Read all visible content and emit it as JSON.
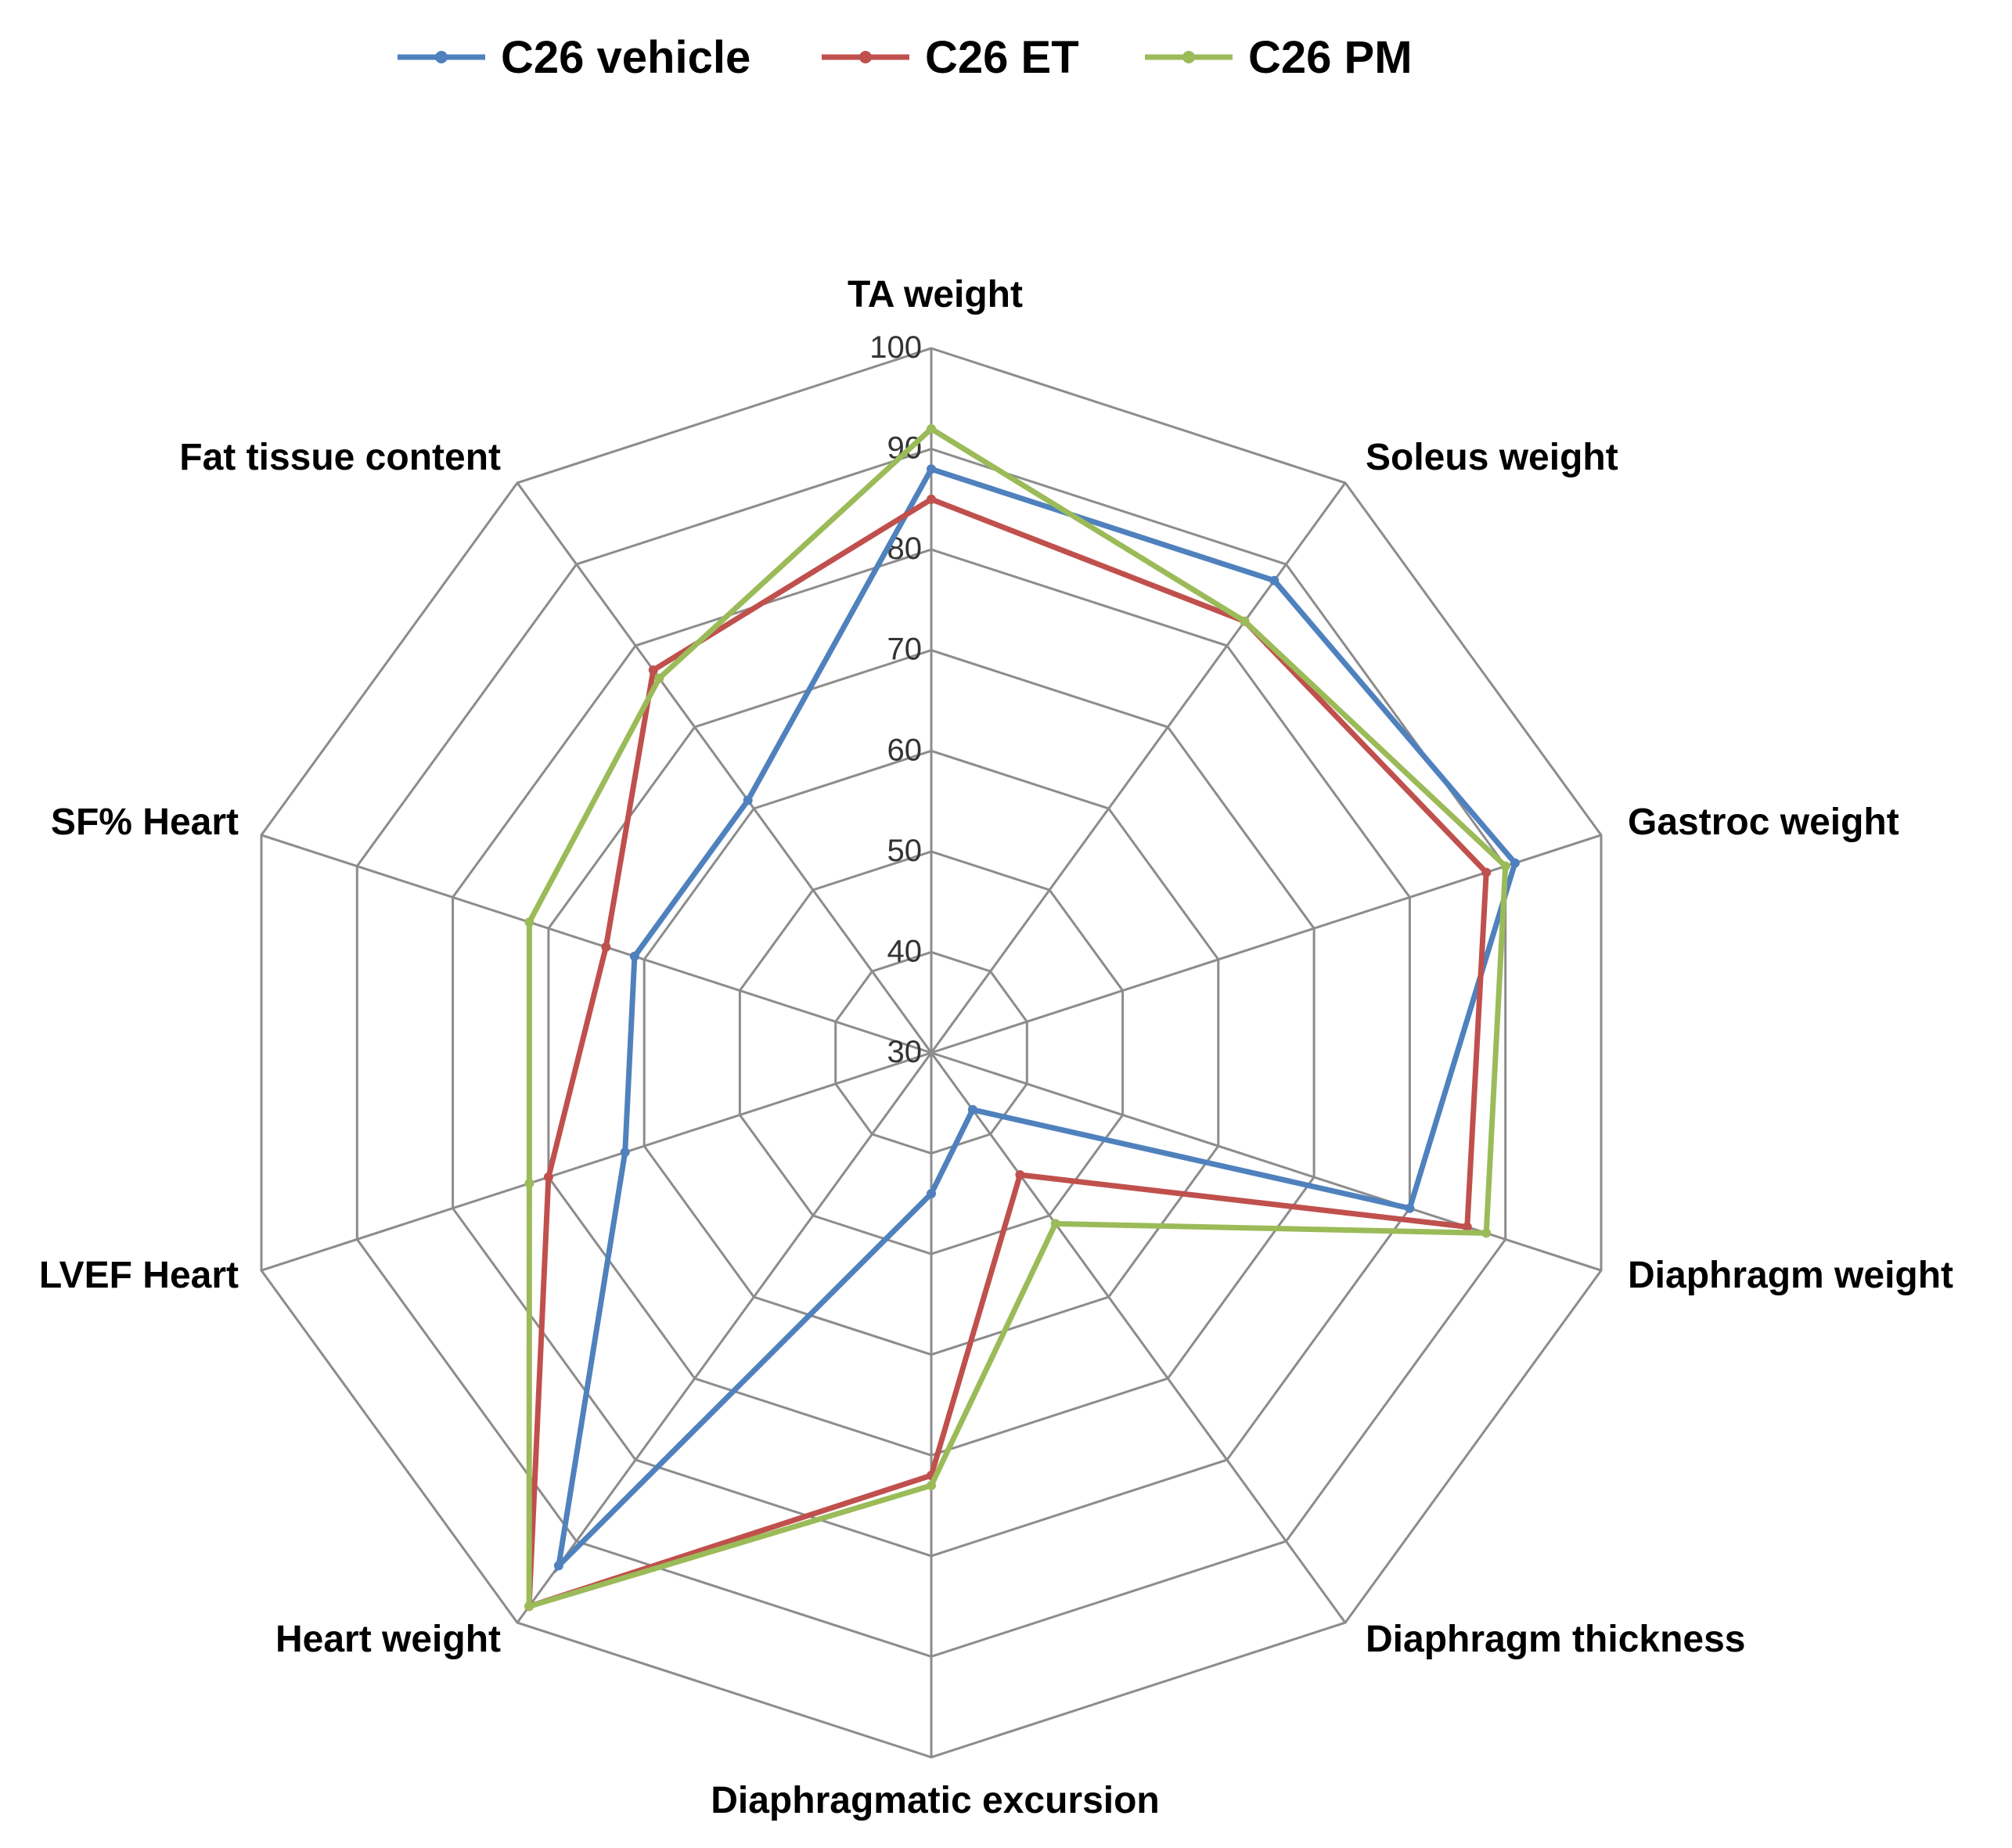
{
  "chart_data": {
    "type": "radar",
    "axes": [
      "TA weight",
      "Soleus weight",
      "Gastroc weight",
      "Diaphragm weight",
      "Diaphragm thickness",
      "Diaphragmatic excursion",
      "Heart weight",
      "LVEF Heart",
      "SF% Heart",
      "Fat tissue content"
    ],
    "r_min": 30,
    "r_max": 100,
    "ticks": [
      30,
      40,
      50,
      60,
      70,
      80,
      90,
      100
    ],
    "legend_position": "top",
    "series": [
      {
        "name": "C26 vehicle",
        "color": "#4F81BD",
        "values": [
          88,
          88,
          91,
          80,
          37,
          44,
          93,
          62,
          61,
          61
        ]
      },
      {
        "name": "C26 ET",
        "color": "#C0504D",
        "values": [
          85,
          83,
          88,
          86,
          45,
          72,
          98,
          70,
          64,
          77
        ]
      },
      {
        "name": "C26 PM",
        "color": "#9BBB59",
        "values": [
          92,
          83,
          90,
          88,
          51,
          73,
          98,
          72,
          72,
          76
        ]
      }
    ]
  }
}
